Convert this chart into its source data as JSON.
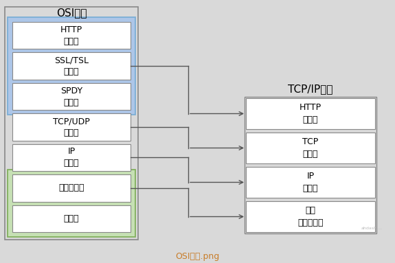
{
  "bg_color": "#d9d9d9",
  "title_osi": "OSI模型",
  "title_tcp": "TCP/IP模型",
  "caption": "OSI模型.png",
  "caption_color": "#c87d2a",
  "osi_layers": [
    {
      "label": "HTTP\n应用层",
      "group": "blue"
    },
    {
      "label": "SSL/TSL\n表示层",
      "group": "blue"
    },
    {
      "label": "SPDY\n会话层",
      "group": "blue"
    },
    {
      "label": "TCP/UDP\n传输层",
      "group": "none"
    },
    {
      "label": "IP\n网络层",
      "group": "none"
    },
    {
      "label": "数据链路层",
      "group": "green"
    },
    {
      "label": "物理层",
      "group": "green"
    }
  ],
  "tcp_layers": [
    {
      "label": "HTTP\n应用层"
    },
    {
      "label": "TCP\n传输层"
    },
    {
      "label": "IP\n网络层"
    },
    {
      "label": "网络\n数据链路层"
    }
  ],
  "blue_group_bg": "#adc6e8",
  "green_group_bg": "#c6e0b4",
  "box_bg": "#ffffff",
  "box_edge": "#888888",
  "outer_edge": "#888888",
  "arrow_color": "#555555",
  "arrows": [
    {
      "from_osi": 1,
      "to_tcp": 0
    },
    {
      "from_osi": 3,
      "to_tcp": 1
    },
    {
      "from_osi": 4,
      "to_tcp": 2
    },
    {
      "from_osi": 5,
      "to_tcp": 3
    }
  ]
}
